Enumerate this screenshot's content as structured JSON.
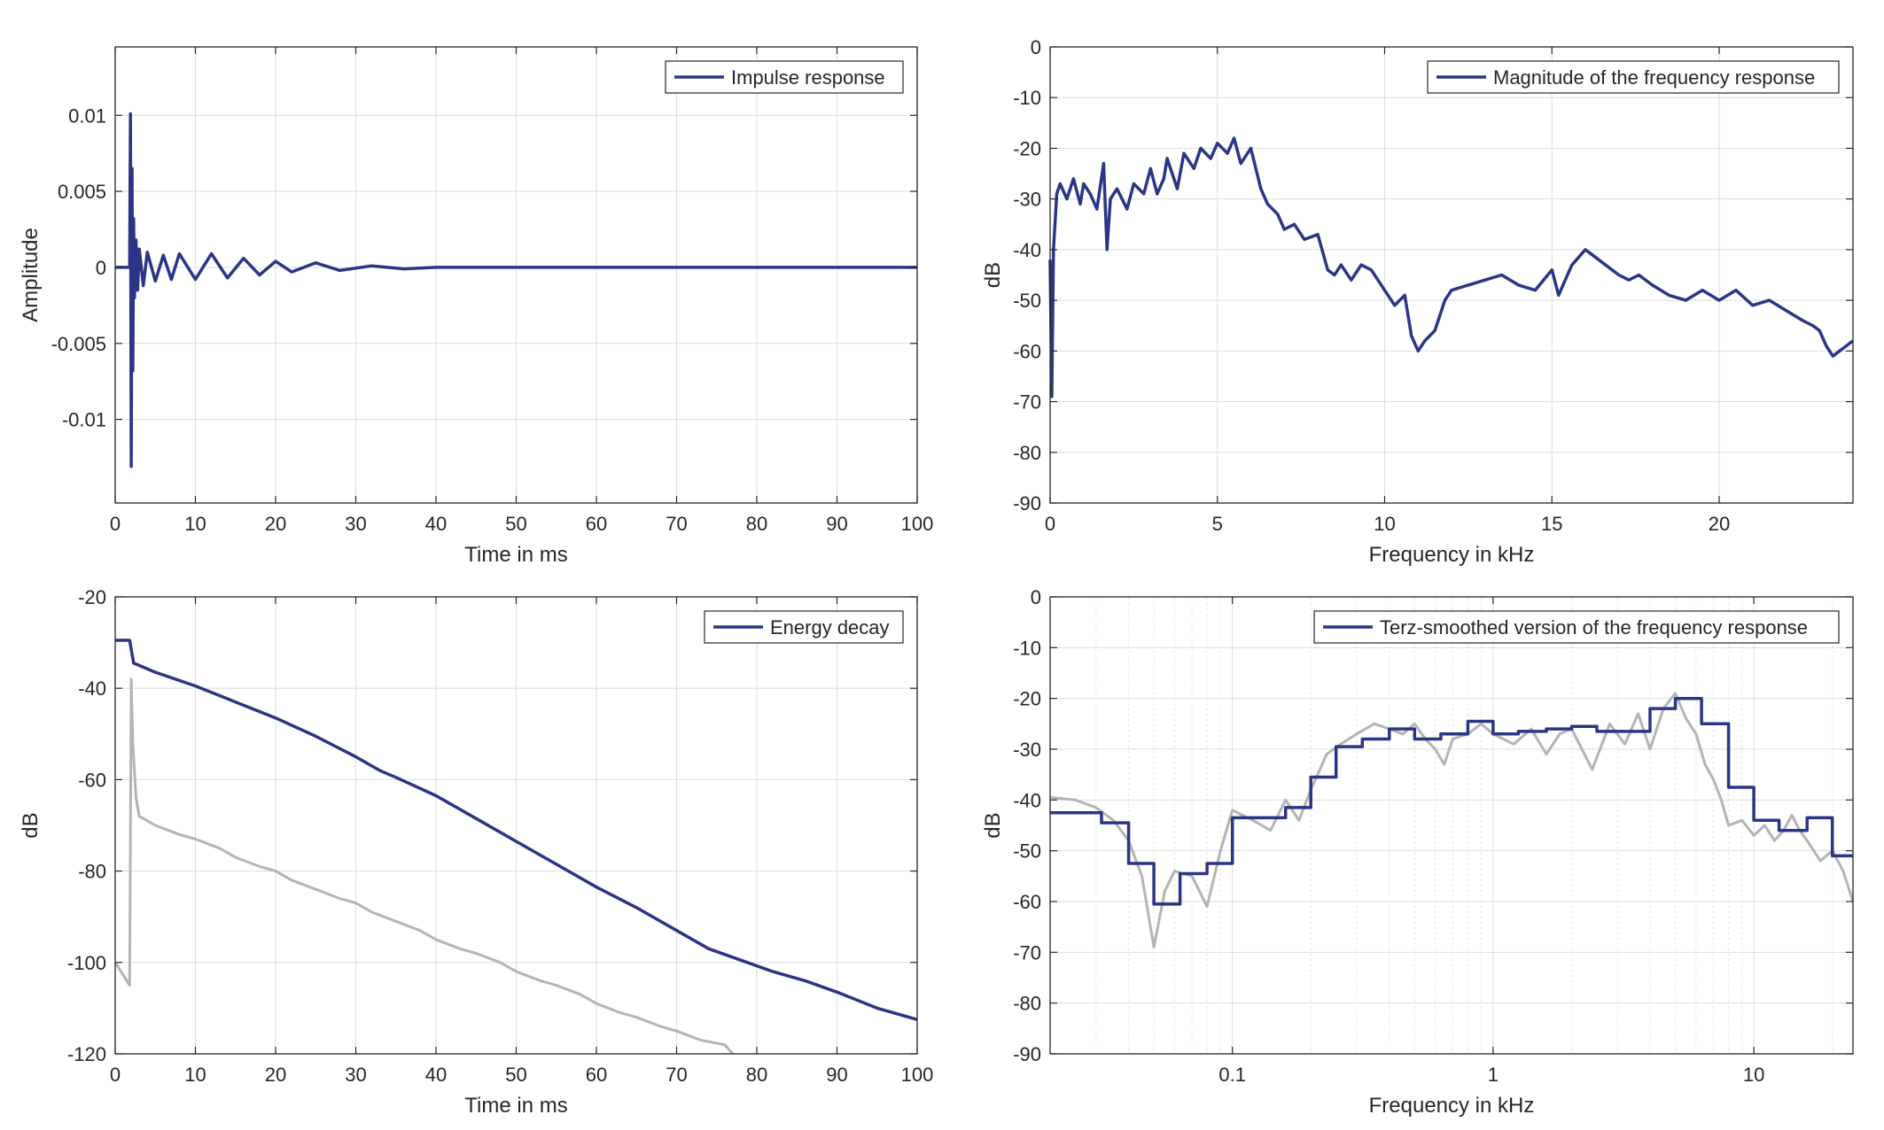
{
  "chart_data": [
    {
      "type": "line",
      "xlabel": "Time in ms",
      "ylabel": "Amplitude",
      "xlim": [
        0,
        100
      ],
      "ylim": [
        -0.0155,
        0.0145
      ],
      "xticks": [
        0,
        10,
        20,
        30,
        40,
        50,
        60,
        70,
        80,
        90,
        100
      ],
      "xtick_labels": [
        "0",
        "10",
        "20",
        "30",
        "40",
        "50",
        "60",
        "70",
        "80",
        "90",
        "100"
      ],
      "yticks": [
        -0.01,
        -0.005,
        0,
        0.005,
        0.01
      ],
      "ytick_labels": [
        "-0.01",
        "-0.005",
        "0",
        "0.005",
        "0.01"
      ],
      "grid": true,
      "legend": "top-right",
      "series": [
        {
          "name": "Impulse response",
          "color": "#2b3585",
          "x": [
            0,
            1.8,
            1.9,
            2.0,
            2.1,
            2.2,
            2.3,
            2.4,
            2.6,
            2.8,
            3.0,
            3.5,
            4.0,
            5,
            6,
            7,
            8,
            10,
            12,
            14,
            16,
            18,
            20,
            22,
            25,
            28,
            32,
            36,
            40,
            100
          ],
          "y": [
            0,
            0,
            0.0101,
            -0.0131,
            0.0065,
            -0.0068,
            0.0032,
            -0.002,
            0.0018,
            -0.0015,
            0.0012,
            -0.0012,
            0.001,
            -0.0009,
            0.0008,
            -0.0008,
            0.0009,
            -0.0008,
            0.0009,
            -0.0007,
            0.0006,
            -0.0005,
            0.0004,
            -0.0003,
            0.0003,
            -0.0002,
            0.0001,
            -0.0001,
            0,
            0
          ]
        }
      ]
    },
    {
      "type": "line",
      "xlabel": "Frequency in kHz",
      "ylabel": "dB",
      "xlim": [
        0,
        24
      ],
      "ylim": [
        -90,
        0
      ],
      "xticks": [
        0,
        5,
        10,
        15,
        20
      ],
      "xtick_labels": [
        "0",
        "5",
        "10",
        "15",
        "20"
      ],
      "yticks": [
        0,
        -10,
        -20,
        -30,
        -40,
        -50,
        -60,
        -70,
        -80,
        -90
      ],
      "ytick_labels": [
        "0",
        "-10",
        "-20",
        "-30",
        "-40",
        "-50",
        "-60",
        "-70",
        "-80",
        "-90"
      ],
      "grid": true,
      "legend": "top-right",
      "series": [
        {
          "name": "Magnitude of the frequency response",
          "color": "#2b3585",
          "x": [
            0.0,
            0.05,
            0.1,
            0.2,
            0.3,
            0.5,
            0.7,
            0.9,
            1.0,
            1.2,
            1.4,
            1.6,
            1.7,
            1.8,
            2.0,
            2.3,
            2.5,
            2.8,
            3.0,
            3.2,
            3.4,
            3.5,
            3.8,
            4.0,
            4.3,
            4.5,
            4.8,
            5.0,
            5.3,
            5.5,
            5.7,
            6.0,
            6.3,
            6.5,
            6.8,
            7.0,
            7.3,
            7.6,
            8.0,
            8.3,
            8.5,
            8.7,
            9.0,
            9.3,
            9.6,
            10.0,
            10.3,
            10.6,
            10.8,
            11.0,
            11.2,
            11.5,
            11.8,
            12.0,
            12.5,
            13.0,
            13.5,
            14.0,
            14.5,
            15.0,
            15.2,
            15.4,
            15.6,
            16.0,
            16.4,
            16.8,
            17.0,
            17.3,
            17.6,
            18.0,
            18.5,
            19.0,
            19.5,
            20.0,
            20.5,
            21.0,
            21.5,
            22.0,
            22.5,
            22.8,
            23.0,
            23.2,
            23.4,
            23.6,
            23.8,
            24.0
          ],
          "y": [
            -42,
            -69,
            -40,
            -29,
            -27,
            -30,
            -26,
            -31,
            -27,
            -29,
            -32,
            -23,
            -40,
            -30,
            -28,
            -32,
            -27,
            -29,
            -24,
            -29,
            -26,
            -22,
            -28,
            -21,
            -24,
            -20,
            -22,
            -19,
            -21,
            -18,
            -23,
            -20,
            -28,
            -31,
            -33,
            -36,
            -35,
            -38,
            -37,
            -44,
            -45,
            -43,
            -46,
            -43,
            -44,
            -48,
            -51,
            -49,
            -57,
            -60,
            -58,
            -56,
            -50,
            -48,
            -47,
            -46,
            -45,
            -47,
            -48,
            -44,
            -49,
            -46,
            -43,
            -40,
            -42,
            -44,
            -45,
            -46,
            -45,
            -47,
            -49,
            -50,
            -48,
            -50,
            -48,
            -51,
            -50,
            -52,
            -54,
            -55,
            -56,
            -59,
            -61,
            -60,
            -59,
            -58
          ]
        }
      ]
    },
    {
      "type": "line",
      "xlabel": "Time in ms",
      "ylabel": "dB",
      "xlim": [
        0,
        100
      ],
      "ylim": [
        -120,
        -20
      ],
      "xticks": [
        0,
        10,
        20,
        30,
        40,
        50,
        60,
        70,
        80,
        90,
        100
      ],
      "xtick_labels": [
        "0",
        "10",
        "20",
        "30",
        "40",
        "50",
        "60",
        "70",
        "80",
        "90",
        "100"
      ],
      "yticks": [
        -20,
        -40,
        -60,
        -80,
        -100,
        -120
      ],
      "ytick_labels": [
        "-20",
        "-40",
        "-60",
        "-80",
        "-100",
        "-120"
      ],
      "grid": true,
      "legend": "top-right",
      "series": [
        {
          "name": "Energy decay",
          "color": "#2b3585",
          "x": [
            0,
            1.8,
            2.3,
            5,
            10,
            15,
            20,
            25,
            30,
            33,
            35,
            40,
            45,
            50,
            55,
            60,
            65,
            70,
            74,
            78,
            82,
            86,
            90,
            95,
            100
          ],
          "y": [
            -29.5,
            -29.5,
            -34.5,
            -36.5,
            -39.5,
            -43,
            -46.5,
            -50.5,
            -55,
            -58,
            -59.5,
            -63.5,
            -68.5,
            -73.5,
            -78.5,
            -83.5,
            -88,
            -93,
            -97,
            -99.5,
            -102,
            -104,
            -106.5,
            -110,
            -112.5
          ]
        },
        {
          "color": "#b4b4b4",
          "x": [
            0,
            1.8,
            2.0,
            2.2,
            2.6,
            3.0,
            5,
            8,
            10,
            13,
            15,
            18,
            20,
            22,
            25,
            28,
            30,
            32,
            35,
            38,
            40,
            43,
            45,
            48,
            50,
            53,
            55,
            58,
            60,
            63,
            65,
            68,
            70,
            73,
            76,
            77
          ],
          "y": [
            -100,
            -105,
            -38,
            -52,
            -64,
            -68,
            -70,
            -72,
            -73,
            -75,
            -77,
            -79,
            -80,
            -82,
            -84,
            -86,
            -87,
            -89,
            -91,
            -93,
            -95,
            -97,
            -98,
            -100,
            -102,
            -104,
            -105,
            -107,
            -109,
            -111,
            -112,
            -114,
            -115,
            -117,
            -118,
            -120
          ]
        }
      ]
    },
    {
      "type": "line",
      "xlabel": "Frequency in kHz",
      "ylabel": "dB",
      "xscale": "log",
      "xlim": [
        0.02,
        24
      ],
      "ylim": [
        -90,
        0
      ],
      "xticks": [
        0.1,
        1,
        10
      ],
      "xtick_labels": [
        "0.1",
        "1",
        "10"
      ],
      "yticks": [
        0,
        -10,
        -20,
        -30,
        -40,
        -50,
        -60,
        -70,
        -80,
        -90
      ],
      "ytick_labels": [
        "0",
        "-10",
        "-20",
        "-30",
        "-40",
        "-50",
        "-60",
        "-70",
        "-80",
        "-90"
      ],
      "grid": true,
      "legend": "top-right",
      "series": [
        {
          "name": "Terz-smoothed version of the frequency response",
          "color": "#2b3585",
          "x": [
            0.02,
            0.0315,
            0.0315,
            0.04,
            0.04,
            0.05,
            0.05,
            0.063,
            0.063,
            0.08,
            0.08,
            0.1,
            0.1,
            0.125,
            0.125,
            0.16,
            0.16,
            0.2,
            0.2,
            0.25,
            0.25,
            0.315,
            0.315,
            0.4,
            0.4,
            0.5,
            0.5,
            0.63,
            0.63,
            0.8,
            0.8,
            1.0,
            1.0,
            1.25,
            1.25,
            1.6,
            1.6,
            2.0,
            2.0,
            2.5,
            2.5,
            3.15,
            3.15,
            4.0,
            4.0,
            5.0,
            5.0,
            6.3,
            6.3,
            8.0,
            8.0,
            10.0,
            10.0,
            12.5,
            12.5,
            16.0,
            16.0,
            20.0,
            20.0,
            24.0
          ],
          "y": [
            -42.5,
            -42.5,
            -44.5,
            -44.5,
            -52.5,
            -52.5,
            -60.5,
            -60.5,
            -54.5,
            -54.5,
            -52.5,
            -52.5,
            -43.5,
            -43.5,
            -43.5,
            -43.5,
            -41.5,
            -41.5,
            -35.5,
            -35.5,
            -29.5,
            -29.5,
            -28,
            -28,
            -26,
            -26,
            -28,
            -28,
            -27,
            -27,
            -24.5,
            -24.5,
            -27,
            -27,
            -26.5,
            -26.5,
            -26,
            -26,
            -25.5,
            -25.5,
            -26.5,
            -26.5,
            -26.5,
            -26.5,
            -22,
            -22,
            -20,
            -20,
            -25,
            -25,
            -37.5,
            -37.5,
            -44,
            -44,
            -46,
            -46,
            -43.5,
            -43.5,
            -51,
            -51
          ]
        },
        {
          "color": "#b4b4b4",
          "x": [
            0.02,
            0.025,
            0.03,
            0.035,
            0.04,
            0.045,
            0.05,
            0.055,
            0.06,
            0.07,
            0.08,
            0.09,
            0.1,
            0.12,
            0.14,
            0.16,
            0.18,
            0.2,
            0.23,
            0.26,
            0.3,
            0.35,
            0.4,
            0.45,
            0.5,
            0.55,
            0.6,
            0.65,
            0.7,
            0.8,
            0.9,
            1.0,
            1.2,
            1.4,
            1.6,
            1.8,
            2.0,
            2.4,
            2.8,
            3.2,
            3.6,
            4.0,
            4.5,
            5.0,
            5.5,
            6.0,
            6.5,
            7.0,
            7.5,
            8.0,
            9.0,
            10.0,
            11.0,
            12.0,
            13.0,
            14.0,
            15.0,
            16.0,
            18.0,
            20.0,
            22.0,
            24.0
          ],
          "y": [
            -39.5,
            -40,
            -41.5,
            -44,
            -48,
            -55,
            -69,
            -58,
            -54,
            -55,
            -61,
            -50,
            -42,
            -44,
            -46,
            -40,
            -44,
            -38,
            -31,
            -29,
            -27,
            -25,
            -26,
            -27,
            -25,
            -28,
            -30,
            -33,
            -28,
            -27,
            -25,
            -27,
            -29,
            -26,
            -31,
            -27,
            -26,
            -34,
            -25,
            -29,
            -23,
            -30,
            -22,
            -19,
            -24,
            -27,
            -33,
            -36,
            -40,
            -45,
            -44,
            -47,
            -45,
            -48,
            -46,
            -43,
            -46,
            -48,
            -52,
            -50,
            -54,
            -60
          ]
        }
      ]
    }
  ]
}
